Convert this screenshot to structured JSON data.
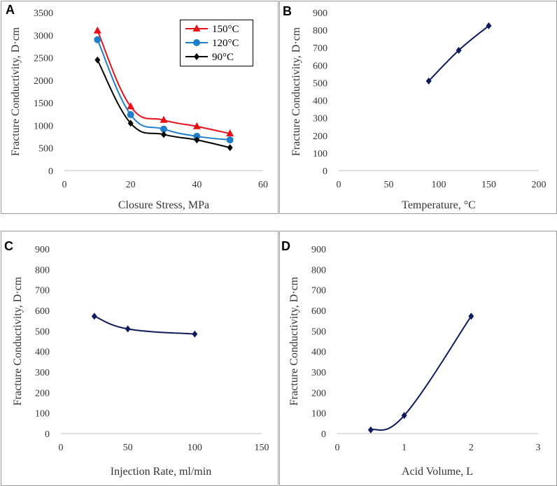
{
  "chart_data": [
    {
      "panel": "A",
      "type": "line",
      "xlabel": "Closure Stress, MPa",
      "ylabel": "Fracture Conductivity, D·cm",
      "xlim": [
        0,
        60
      ],
      "xticks": [
        0,
        20,
        40,
        60
      ],
      "ylim": [
        0,
        3500
      ],
      "yticks": [
        0,
        500,
        1000,
        1500,
        2000,
        2500,
        3000,
        3500
      ],
      "legend": "top-right",
      "series": [
        {
          "name": "150°C",
          "color": "#e8111a",
          "marker": "triangle",
          "x": [
            10,
            20,
            30,
            40,
            50
          ],
          "y": [
            3100,
            1420,
            1120,
            980,
            820
          ]
        },
        {
          "name": "120°C",
          "color": "#1f7ec8",
          "marker": "circle",
          "x": [
            10,
            20,
            30,
            40,
            50
          ],
          "y": [
            2900,
            1240,
            920,
            760,
            680
          ]
        },
        {
          "name": "90°C",
          "color": "#000000",
          "marker": "diamond",
          "x": [
            10,
            20,
            30,
            40,
            50
          ],
          "y": [
            2450,
            1050,
            800,
            680,
            510
          ]
        }
      ]
    },
    {
      "panel": "B",
      "type": "line",
      "xlabel": "Temperature, °C",
      "ylabel": "Fracture Conductivity, D·cm",
      "xlim": [
        0,
        200
      ],
      "xticks": [
        0,
        50,
        100,
        150,
        200
      ],
      "ylim": [
        0,
        900
      ],
      "yticks": [
        0,
        100,
        200,
        300,
        400,
        500,
        600,
        700,
        800,
        900
      ],
      "series": [
        {
          "name": "",
          "color": "#0d1a5c",
          "marker": "diamond",
          "x": [
            90,
            120,
            150
          ],
          "y": [
            510,
            685,
            825
          ]
        }
      ]
    },
    {
      "panel": "C",
      "type": "line",
      "xlabel": "Injection Rate, ml/min",
      "ylabel": "Fracture Conductivity, D·cm",
      "xlim": [
        0,
        150
      ],
      "xticks": [
        0,
        50,
        100,
        150
      ],
      "ylim": [
        0,
        900
      ],
      "yticks": [
        0,
        100,
        200,
        300,
        400,
        500,
        600,
        700,
        800,
        900
      ],
      "series": [
        {
          "name": "",
          "color": "#0d1a5c",
          "marker": "diamond",
          "x": [
            25,
            50,
            100
          ],
          "y": [
            572,
            510,
            485
          ]
        }
      ]
    },
    {
      "panel": "D",
      "type": "line",
      "xlabel": "Acid Volume, L",
      "ylabel": "Fracture Conductivity, D·cm",
      "xlim": [
        0,
        3
      ],
      "xticks": [
        0,
        1,
        2,
        3
      ],
      "ylim": [
        0,
        900
      ],
      "yticks": [
        0,
        100,
        200,
        300,
        400,
        500,
        600,
        700,
        800,
        900
      ],
      "series": [
        {
          "name": "",
          "color": "#0d1a5c",
          "marker": "diamond",
          "x": [
            0.5,
            1,
            2
          ],
          "y": [
            18,
            88,
            572
          ]
        }
      ]
    }
  ]
}
